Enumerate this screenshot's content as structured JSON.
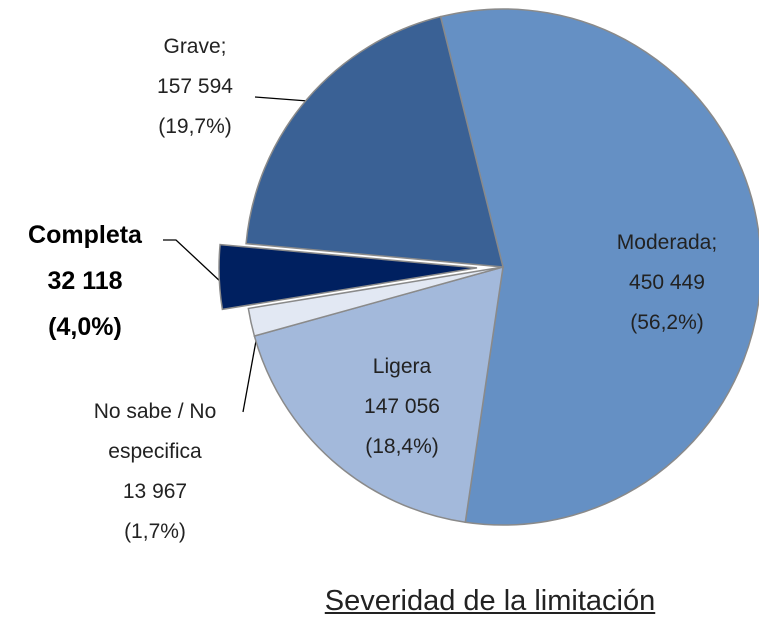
{
  "chart_data": {
    "type": "pie",
    "title": "Severidad de la limitación",
    "categories": [
      "Moderada;",
      "Ligera",
      "No sabe / No especifica",
      "Completa",
      "Grave;"
    ],
    "values": [
      450449,
      147056,
      13967,
      32118,
      157594
    ],
    "value_labels": [
      "450 449",
      "147 056",
      "13 967",
      "32 118",
      "157 594"
    ],
    "percent_labels": [
      "(56,2%)",
      "(18,4%)",
      "(1,7%)",
      "(4,0%)",
      "(19,7%)"
    ],
    "colors": [
      "#6590c4",
      "#a3b9db",
      "#e2e8f3",
      "#002060",
      "#3a6195"
    ],
    "explode": [
      false,
      false,
      false,
      true,
      false
    ]
  }
}
